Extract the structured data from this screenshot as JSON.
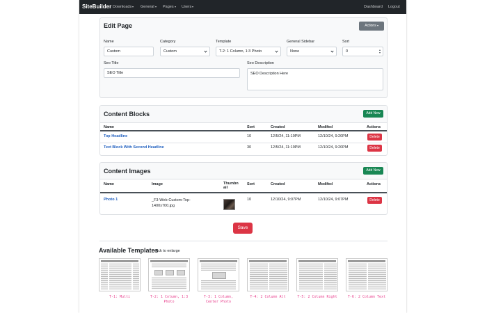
{
  "navbar": {
    "brand": "SiteBuilder",
    "items": [
      "Downloads",
      "General",
      "Pages",
      "Users"
    ],
    "right": [
      "Dashboard",
      "Logout"
    ]
  },
  "edit_page": {
    "title": "Edit Page",
    "actions_label": "Actions",
    "labels": {
      "name": "Name",
      "category": "Category",
      "template": "Template",
      "sidebar": "General Sidebar",
      "sort": "Sort",
      "seo_title": "Seo Title",
      "seo_description": "Seo Description"
    },
    "values": {
      "name": "Custom",
      "category": "Custom",
      "template": "T-2: 1 Column, 1:3 Photo",
      "sidebar": "None",
      "sort": "0",
      "seo_title": "SEO Title",
      "seo_description": "SEO Description Here"
    }
  },
  "content_blocks": {
    "title": "Content Blocks",
    "add_label": "Add New",
    "headers": [
      "Name",
      "Sort",
      "Created",
      "Modifed",
      "Actions"
    ],
    "rows": [
      {
        "name": "Top Headline",
        "sort": "10",
        "created": "12/5/24, 11:19PM",
        "modified": "12/10/24, 9:20PM",
        "action": "Delete"
      },
      {
        "name": "Text Block With Second Headline",
        "sort": "30",
        "created": "12/5/24, 11:19PM",
        "modified": "12/10/24, 9:20PM",
        "action": "Delete"
      }
    ]
  },
  "content_images": {
    "title": "Content Images",
    "add_label": "Add New",
    "headers": [
      "Name",
      "Image",
      "Thumbn",
      "ail",
      "Sort",
      "Created",
      "Modifed",
      "Actions"
    ],
    "rows": [
      {
        "name": "Photo 1",
        "image_line1": "_F3-Web-Custom-Top-",
        "image_line2": "1400x700.jpg",
        "sort": "10",
        "created": "12/10/24, 9:07PM",
        "modified": "12/10/24, 9:07PM",
        "action": "Delete"
      }
    ]
  },
  "save_label": "Save",
  "templates": {
    "title": "Available Templates",
    "hint": "click to enlarge",
    "items": [
      {
        "line1": "T-1: Multi",
        "line2": ""
      },
      {
        "line1": "T-2: 1 Column, 1:3",
        "line2": "Photo"
      },
      {
        "line1": "T-3: 1 Column,",
        "line2": "Center Photo"
      },
      {
        "line1": "T-4: 2 Column Alt",
        "line2": ""
      },
      {
        "line1": "T-5: 2 Column Right",
        "line2": ""
      },
      {
        "line1": "T-6: 2 Column Text",
        "line2": ""
      }
    ]
  },
  "colors": {
    "navbar": "#212529",
    "primary_link": "#1f5fbf",
    "success": "#198754",
    "danger": "#dc3545",
    "secondary": "#6c757d",
    "template_caption": "#e83e8c"
  }
}
